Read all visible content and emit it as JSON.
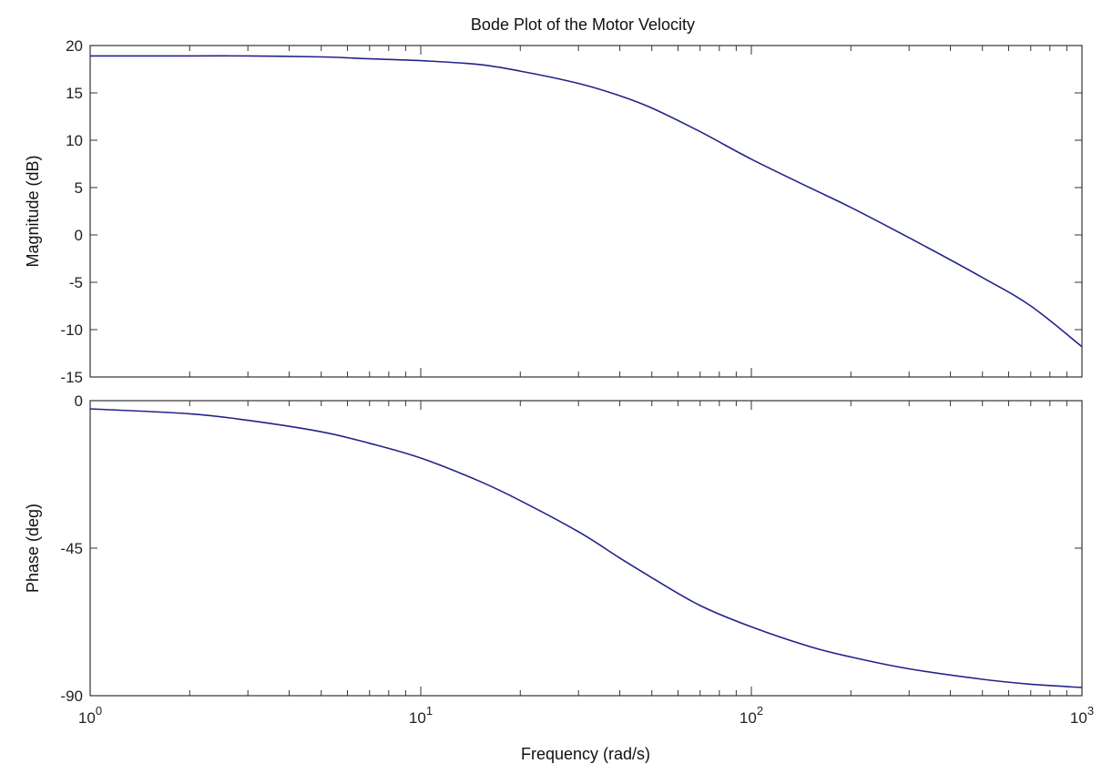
{
  "figure": {
    "title": "Bode Plot of the Motor Velocity",
    "xlabel": "Frequency  (rad/s)"
  },
  "chart_data": [
    {
      "type": "line",
      "panel": "magnitude",
      "title": "Bode Plot of the Motor Velocity",
      "xlabel": "Frequency  (rad/s)",
      "ylabel": "Magnitude (dB)",
      "xscale": "log",
      "xlim": [
        1,
        1000
      ],
      "ylim": [
        -15,
        20
      ],
      "yticks": [
        20,
        15,
        10,
        5,
        0,
        -5,
        -10,
        -15
      ],
      "xticks": [
        1,
        10,
        100,
        1000
      ],
      "xtick_labels": [
        {
          "base": "10",
          "exp": "0"
        },
        {
          "base": "10",
          "exp": "1"
        },
        {
          "base": "10",
          "exp": "2"
        },
        {
          "base": "10",
          "exp": "3"
        }
      ],
      "grid": false,
      "series_color": "#23238c",
      "x": [
        1,
        2,
        3,
        5,
        7,
        10,
        15,
        20,
        30,
        40,
        50,
        70,
        100,
        150,
        200,
        300,
        500,
        700,
        1000
      ],
      "y": [
        18.9,
        18.9,
        18.9,
        18.8,
        18.6,
        18.4,
        18.0,
        17.3,
        16.0,
        14.7,
        13.4,
        10.9,
        8.0,
        5.0,
        2.9,
        -0.3,
        -4.5,
        -7.5,
        -11.8
      ]
    },
    {
      "type": "line",
      "panel": "phase",
      "ylabel": "Phase (deg)",
      "xscale": "log",
      "xlim": [
        1,
        1000
      ],
      "ylim": [
        -90,
        0
      ],
      "yticks": [
        0,
        -45,
        -90
      ],
      "grid": false,
      "series_color": "#23238c",
      "x": [
        1,
        2,
        3,
        5,
        7,
        10,
        15,
        20,
        30,
        40,
        50,
        70,
        100,
        150,
        200,
        300,
        500,
        700,
        1000
      ],
      "y": [
        -2.5,
        -4.0,
        -6.0,
        -9.5,
        -13.0,
        -17.5,
        -24.5,
        -30.5,
        -40.0,
        -48.0,
        -54.0,
        -62.5,
        -69.0,
        -75.0,
        -78.2,
        -81.8,
        -85.0,
        -86.5,
        -87.5
      ]
    }
  ]
}
